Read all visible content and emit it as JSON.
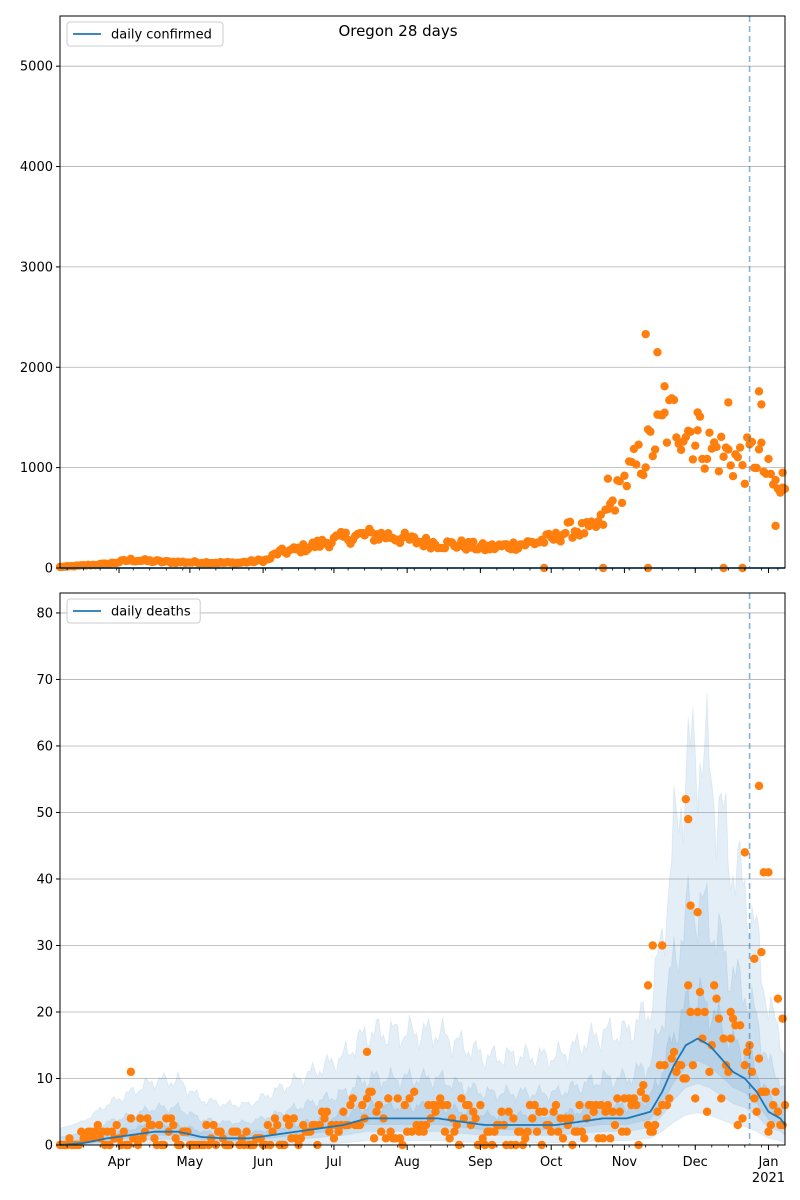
{
  "chart_data": [
    {
      "type": "scatter",
      "title": "Oregon 28 days",
      "legend": {
        "label": "daily confirmed",
        "placement": "top-left"
      },
      "grid": true,
      "xlim": [
        0,
        307
      ],
      "ylim": [
        0,
        5500
      ],
      "yticks": [
        0,
        1000,
        2000,
        3000,
        4000,
        5000
      ],
      "vline_day": 292,
      "colors": {
        "line": "#1f77b4",
        "points": "#ff7f0e",
        "band": "#1f77b4",
        "grid": "#b0b0b0"
      },
      "model_line": {
        "name": "daily confirmed",
        "values_const": 0
      },
      "observed_points": {
        "anchors": [
          [
            0,
            10
          ],
          [
            20,
            40
          ],
          [
            30,
            80
          ],
          [
            45,
            60
          ],
          [
            60,
            55
          ],
          [
            75,
            50
          ],
          [
            88,
            80
          ],
          [
            92,
            150
          ],
          [
            100,
            180
          ],
          [
            110,
            240
          ],
          [
            120,
            300
          ],
          [
            130,
            330
          ],
          [
            140,
            320
          ],
          [
            150,
            270
          ],
          [
            160,
            240
          ],
          [
            170,
            230
          ],
          [
            180,
            200
          ],
          [
            190,
            220
          ],
          [
            200,
            250
          ],
          [
            210,
            300
          ],
          [
            215,
            380
          ],
          [
            220,
            380
          ],
          [
            225,
            380
          ],
          [
            230,
            470
          ],
          [
            235,
            700
          ],
          [
            240,
            900
          ],
          [
            245,
            1050
          ],
          [
            250,
            1200
          ],
          [
            255,
            1400
          ],
          [
            260,
            1500
          ],
          [
            265,
            1400
          ],
          [
            270,
            1300
          ],
          [
            275,
            1200
          ],
          [
            280,
            1150
          ],
          [
            285,
            1100
          ],
          [
            290,
            1050
          ],
          [
            295,
            1150
          ],
          [
            300,
            900
          ],
          [
            305,
            750
          ],
          [
            307,
            720
          ]
        ],
        "noise": 0.22,
        "outliers": [
          [
            248,
            2330
          ],
          [
            253,
            2150
          ],
          [
            256,
            1810
          ],
          [
            270,
            1550
          ],
          [
            283,
            1650
          ],
          [
            296,
            1760
          ],
          [
            297,
            1630
          ],
          [
            281,
            0
          ],
          [
            289,
            0
          ],
          [
            249,
            0
          ],
          [
            205,
            0
          ],
          [
            230,
            0
          ],
          [
            232,
            890
          ],
          [
            303,
            420
          ],
          [
            306,
            950
          ]
        ]
      }
    },
    {
      "type": "scatter",
      "legend": {
        "label": "daily deaths",
        "placement": "top-left"
      },
      "grid": true,
      "xlim": [
        0,
        307
      ],
      "ylim": [
        0,
        83
      ],
      "yticks": [
        0,
        10,
        20,
        30,
        40,
        50,
        60,
        70,
        80
      ],
      "vline_day": 292,
      "colors": {
        "line": "#1f77b4",
        "points": "#ff7f0e",
        "band": "#1f77b4",
        "grid": "#b0b0b0"
      },
      "model_line": {
        "name": "daily deaths",
        "anchors": [
          [
            0,
            0
          ],
          [
            10,
            0.3
          ],
          [
            20,
            1
          ],
          [
            30,
            1.5
          ],
          [
            40,
            2
          ],
          [
            50,
            2
          ],
          [
            60,
            1.2
          ],
          [
            70,
            1
          ],
          [
            80,
            1
          ],
          [
            90,
            1.5
          ],
          [
            100,
            2
          ],
          [
            110,
            2.5
          ],
          [
            120,
            3
          ],
          [
            130,
            4
          ],
          [
            140,
            4
          ],
          [
            150,
            4
          ],
          [
            160,
            4
          ],
          [
            170,
            3.5
          ],
          [
            180,
            3
          ],
          [
            190,
            3
          ],
          [
            200,
            3
          ],
          [
            210,
            3
          ],
          [
            220,
            3.5
          ],
          [
            230,
            4
          ],
          [
            240,
            4
          ],
          [
            250,
            5
          ],
          [
            255,
            8
          ],
          [
            260,
            12
          ],
          [
            265,
            15
          ],
          [
            270,
            16
          ],
          [
            275,
            15
          ],
          [
            280,
            13
          ],
          [
            285,
            11
          ],
          [
            290,
            10
          ],
          [
            295,
            8
          ],
          [
            300,
            5
          ],
          [
            305,
            4
          ],
          [
            307,
            3
          ]
        ]
      },
      "bands": [
        {
          "scale": [
            0.35,
            3.6
          ],
          "add": 2.5
        },
        {
          "scale": [
            0.6,
            2.2
          ],
          "add": 1.2
        },
        {
          "scale": [
            0.8,
            1.35
          ],
          "add": 0.4
        }
      ],
      "observed_points": {
        "noise": 0.6,
        "outliers": [
          [
            30,
            11
          ],
          [
            130,
            14
          ],
          [
            265,
            52
          ],
          [
            266,
            49
          ],
          [
            290,
            44
          ],
          [
            296,
            54
          ],
          [
            298,
            41
          ],
          [
            300,
            41
          ],
          [
            267,
            36
          ],
          [
            270,
            35
          ],
          [
            249,
            24
          ],
          [
            251,
            30
          ],
          [
            255,
            30
          ],
          [
            297,
            29
          ],
          [
            294,
            28
          ],
          [
            304,
            22
          ],
          [
            306,
            19
          ],
          [
            284,
            16
          ]
        ]
      }
    }
  ],
  "x_axis": {
    "month_labels": [
      "Apr",
      "May",
      "Jun",
      "Jul",
      "Aug",
      "Sep",
      "Oct",
      "Nov",
      "Dec",
      "Jan"
    ],
    "month_days": [
      25,
      55,
      86,
      116,
      147,
      178,
      208,
      239,
      269,
      300
    ],
    "year_label": "2021",
    "year_day": 300
  }
}
